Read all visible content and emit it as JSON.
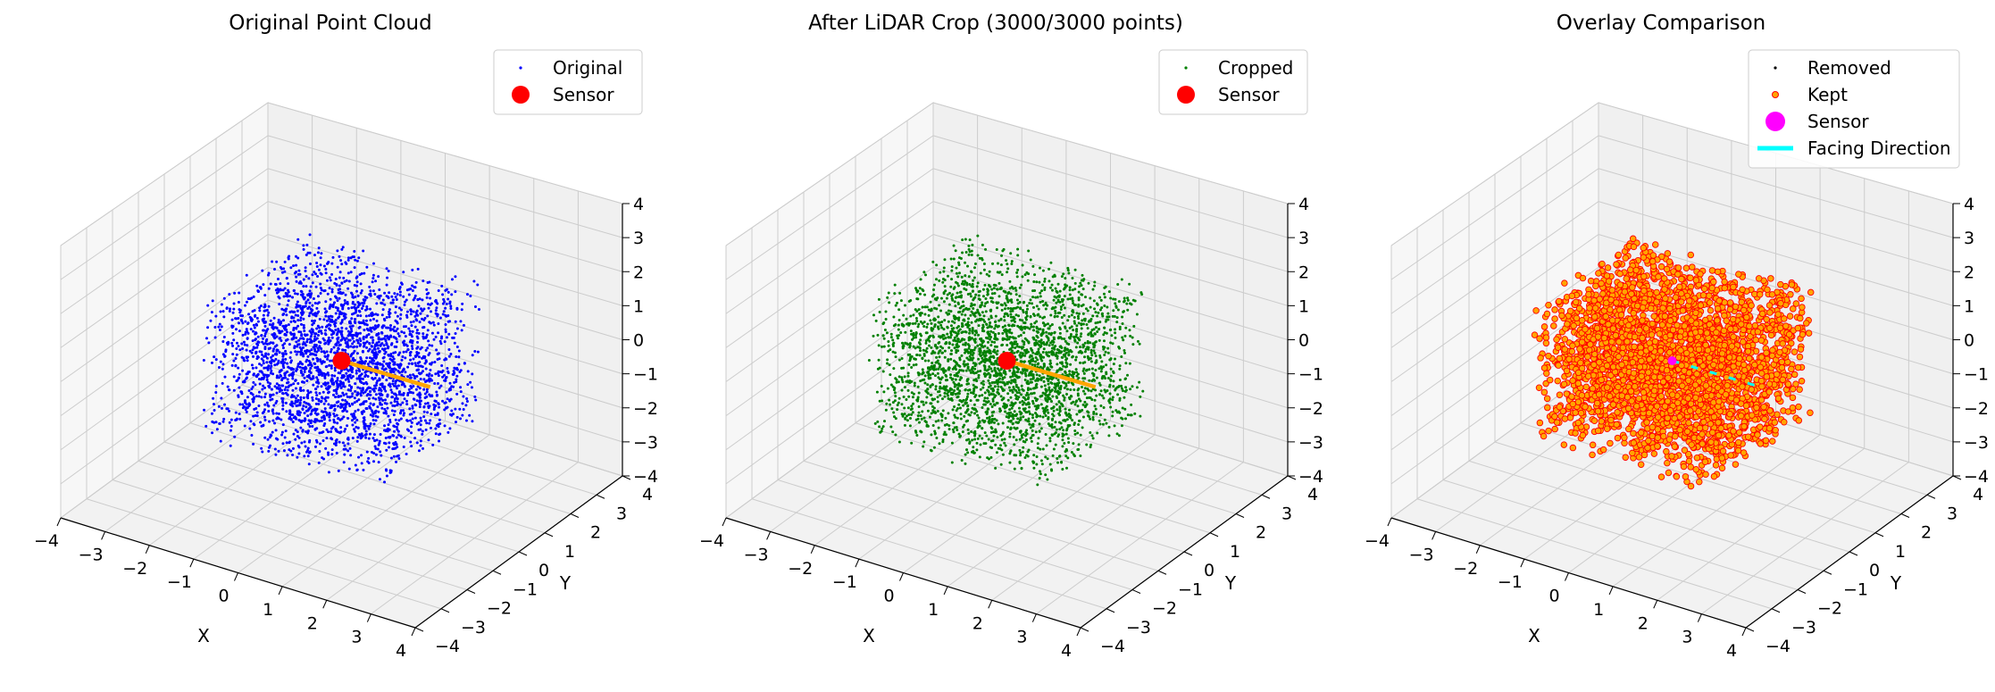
{
  "chart_data": [
    {
      "type": "scatter",
      "projection": "3d",
      "title": "Original Point Cloud",
      "xlabel": "X",
      "ylabel": "Y",
      "zlabel": "",
      "xlim": [
        -4,
        4
      ],
      "ylim": [
        -4,
        4
      ],
      "zlim": [
        -4,
        4
      ],
      "ticks": [
        -4,
        -3,
        -2,
        -1,
        0,
        1,
        2,
        3,
        4
      ],
      "tick_labels": [
        "−4",
        "−3",
        "−2",
        "−1",
        "0",
        "1",
        "2",
        "3",
        "4"
      ],
      "grid": true,
      "legend_position": "upper-right",
      "series": [
        {
          "name": "Original",
          "kind": "points",
          "color": "#0000ff",
          "count": 3000,
          "extent": [
            -2,
            2
          ],
          "size": "small"
        },
        {
          "name": "Sensor",
          "kind": "marker",
          "color": "#ff0000",
          "x": 0,
          "y": 0,
          "z": 0
        },
        {
          "name": "",
          "kind": "line",
          "color": "#ffa500",
          "from": [
            0,
            0,
            0
          ],
          "to": [
            2,
            0,
            0
          ]
        }
      ]
    },
    {
      "type": "scatter",
      "projection": "3d",
      "title": "After LiDAR Crop (3000/3000 points)",
      "xlabel": "X",
      "ylabel": "Y",
      "zlabel": "",
      "xlim": [
        -4,
        4
      ],
      "ylim": [
        -4,
        4
      ],
      "zlim": [
        -4,
        4
      ],
      "ticks": [
        -4,
        -3,
        -2,
        -1,
        0,
        1,
        2,
        3,
        4
      ],
      "tick_labels": [
        "−4",
        "−3",
        "−2",
        "−1",
        "0",
        "1",
        "2",
        "3",
        "4"
      ],
      "grid": true,
      "legend_position": "upper-right",
      "series": [
        {
          "name": "Cropped",
          "kind": "points",
          "color": "#008000",
          "count": 3000,
          "extent": [
            -2,
            2
          ],
          "size": "small"
        },
        {
          "name": "Sensor",
          "kind": "marker",
          "color": "#ff0000",
          "x": 0,
          "y": 0,
          "z": 0
        },
        {
          "name": "",
          "kind": "line",
          "color": "#ffa500",
          "from": [
            0,
            0,
            0
          ],
          "to": [
            2,
            0,
            0
          ]
        }
      ]
    },
    {
      "type": "scatter",
      "projection": "3d",
      "title": "Overlay Comparison",
      "xlabel": "X",
      "ylabel": "Y",
      "zlabel": "",
      "xlim": [
        -4,
        4
      ],
      "ylim": [
        -4,
        4
      ],
      "zlim": [
        -4,
        4
      ],
      "ticks": [
        -4,
        -3,
        -2,
        -1,
        0,
        1,
        2,
        3,
        4
      ],
      "tick_labels": [
        "−4",
        "−3",
        "−2",
        "−1",
        "0",
        "1",
        "2",
        "3",
        "4"
      ],
      "grid": true,
      "legend_position": "upper-right",
      "series": [
        {
          "name": "Removed",
          "kind": "points",
          "color": "#000000",
          "count": 0,
          "extent": [
            -2,
            2
          ],
          "size": "small"
        },
        {
          "name": "Kept",
          "kind": "points",
          "color": "#ffa500",
          "edgecolor": "#ff0000",
          "count": 3000,
          "extent": [
            -2,
            2
          ],
          "size": "large"
        },
        {
          "name": "Sensor",
          "kind": "marker",
          "color": "#ff00ff",
          "x": 0,
          "y": 0,
          "z": 0
        },
        {
          "name": "Facing Direction",
          "kind": "line",
          "color": "#00ffff",
          "from": [
            0,
            0,
            0
          ],
          "to": [
            2,
            0,
            0
          ],
          "style": "dashed"
        }
      ]
    }
  ]
}
